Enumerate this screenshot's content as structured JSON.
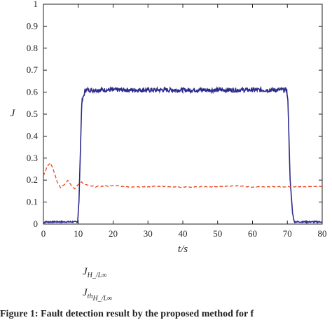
{
  "chart_data": {
    "type": "line",
    "xlabel": "t/s",
    "ylabel": "J",
    "xlim": [
      0,
      80
    ],
    "ylim": [
      0,
      1
    ],
    "x_ticks": [
      "0",
      "10",
      "20",
      "30",
      "40",
      "50",
      "60",
      "70",
      "80"
    ],
    "y_ticks": [
      "0",
      "0.1",
      "0.2",
      "0.3",
      "0.4",
      "0.5",
      "0.6",
      "0.7",
      "0.8",
      "0.9",
      "1"
    ],
    "grid": false,
    "legend_position": "below",
    "series": [
      {
        "legend_main": "J",
        "legend_sub": "H_/L∞",
        "color": "#2e2a8c",
        "style": "solid",
        "x": [
          0,
          0.3,
          9.8,
          10.2,
          11,
          12,
          20,
          30,
          40,
          50,
          60,
          69.8,
          70.2,
          70.8,
          71.5,
          72,
          80
        ],
        "y": [
          0.0,
          0.01,
          0.01,
          0.1,
          0.55,
          0.61,
          0.61,
          0.61,
          0.61,
          0.61,
          0.61,
          0.61,
          0.55,
          0.2,
          0.05,
          0.01,
          0.01
        ]
      },
      {
        "legend_main": "J",
        "legend_sub_base": "th",
        "legend_sub_sub": "H_/L∞",
        "color": "#e8451e",
        "style": "dashed",
        "x": [
          0,
          1,
          2,
          3,
          4,
          5,
          6,
          7,
          8,
          9,
          10,
          11,
          12,
          15,
          20,
          25,
          30,
          35,
          40,
          45,
          50,
          55,
          60,
          65,
          70,
          75,
          80
        ],
        "y": [
          0.22,
          0.26,
          0.28,
          0.24,
          0.19,
          0.165,
          0.18,
          0.2,
          0.175,
          0.16,
          0.18,
          0.19,
          0.18,
          0.17,
          0.175,
          0.168,
          0.17,
          0.172,
          0.168,
          0.17,
          0.17,
          0.175,
          0.168,
          0.17,
          0.17,
          0.17,
          0.172
        ]
      }
    ]
  },
  "caption": "Figure 1: Fault detection result by the proposed method for f"
}
